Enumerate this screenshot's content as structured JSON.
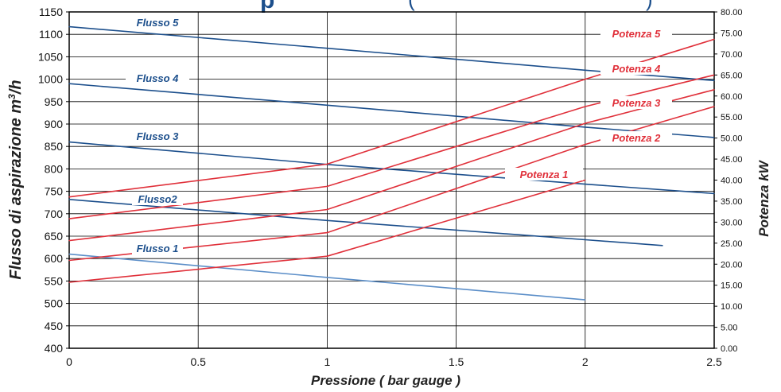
{
  "chart_data": {
    "type": "line",
    "title_visible": "p",
    "subtitle_visible": "(",
    "subtitle_tail": ")",
    "xlabel": "Pressione ( bar gauge )",
    "ylabel_left_text": "Flusso di aspirazione m",
    "ylabel_left_sup": "3",
    "ylabel_left_tail": "/h",
    "ylabel_right": "Potenza kW",
    "xlim": [
      0,
      2.5
    ],
    "ylim_left": [
      400,
      1150
    ],
    "ylim_right": [
      0,
      80
    ],
    "grid": true,
    "x_ticks": [
      "0",
      "0.5",
      "1",
      "1.5",
      "2",
      "2.5"
    ],
    "y_ticks_left": [
      "400",
      "450",
      "500",
      "550",
      "600",
      "650",
      "700",
      "750",
      "800",
      "850",
      "900",
      "950",
      "1000",
      "1050",
      "1100",
      "1150"
    ],
    "y_ticks_right": [
      "0.00",
      "5.00",
      "10.00",
      "15.00",
      "20.00",
      "25.00",
      "30.00",
      "35.00",
      "40.00",
      "45.00",
      "50.00",
      "55.00",
      "60.00",
      "65.00",
      "70.00",
      "75.00",
      "80.00"
    ],
    "colors": {
      "flusso": "#1c4f8c",
      "flusso1": "#5b8ec8",
      "potenza": "#e0303a"
    },
    "series": [
      {
        "name": "Flusso 1",
        "axis": "left",
        "color": "#5b8ec8",
        "x": [
          0,
          1,
          2
        ],
        "y": [
          610,
          558,
          508
        ]
      },
      {
        "name": "Flusso2",
        "axis": "left",
        "color": "#1c4f8c",
        "x": [
          0,
          1,
          2,
          2.3
        ],
        "y": [
          732,
          685,
          642,
          629
        ]
      },
      {
        "name": "Flusso 3",
        "axis": "left",
        "color": "#1c4f8c",
        "x": [
          0,
          1,
          2,
          2.5
        ],
        "y": [
          860,
          810,
          766,
          745
        ]
      },
      {
        "name": "Flusso 4",
        "axis": "left",
        "color": "#1c4f8c",
        "x": [
          0,
          1,
          2,
          2.5
        ],
        "y": [
          990,
          942,
          893,
          870
        ]
      },
      {
        "name": "Flusso 5",
        "axis": "left",
        "color": "#1c4f8c",
        "x": [
          0,
          1,
          2,
          2.5
        ],
        "y": [
          1117,
          1069,
          1020,
          997
        ]
      },
      {
        "name": "Potenza 1",
        "axis": "right",
        "color": "#e0303a",
        "x": [
          0,
          1,
          2
        ],
        "y": [
          15.7,
          21.9,
          40.0
        ]
      },
      {
        "name": "Potenza 2",
        "axis": "right",
        "color": "#e0303a",
        "x": [
          0,
          1,
          2,
          2.5
        ],
        "y": [
          20.9,
          27.5,
          48.5,
          57.5
        ]
      },
      {
        "name": "Potenza 3",
        "axis": "right",
        "color": "#e0303a",
        "x": [
          0,
          1,
          2,
          2.5
        ],
        "y": [
          25.6,
          33.0,
          53.5,
          61.5
        ]
      },
      {
        "name": "Potenza 4",
        "axis": "right",
        "color": "#e0303a",
        "x": [
          0,
          1,
          2,
          2.5
        ],
        "y": [
          30.8,
          38.5,
          57.5,
          65.0
        ]
      },
      {
        "name": "Potenza 5",
        "axis": "right",
        "color": "#e0303a",
        "x": [
          0,
          1,
          2,
          2.5
        ],
        "y": [
          36.0,
          43.8,
          64.0,
          73.5
        ]
      }
    ]
  }
}
